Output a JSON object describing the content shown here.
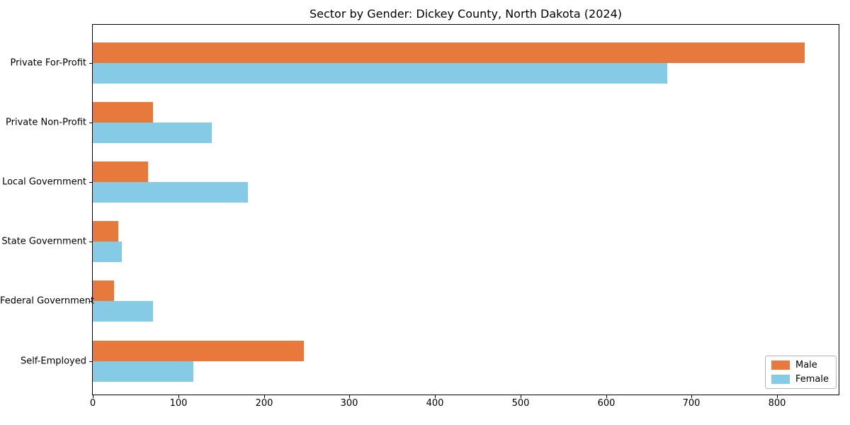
{
  "chart_data": {
    "type": "bar",
    "orientation": "horizontal",
    "title": "Sector by Gender: Dickey County, North Dakota (2024)",
    "categories": [
      "Private For-Profit",
      "Private Non-Profit",
      "Local Government",
      "State Government",
      "Federal Government",
      "Self-Employed"
    ],
    "series": [
      {
        "name": "Male",
        "color": "#e8793d",
        "values": [
          832,
          70,
          65,
          30,
          25,
          247
        ]
      },
      {
        "name": "Female",
        "color": "#85cbe5",
        "values": [
          672,
          139,
          181,
          34,
          70,
          118
        ]
      }
    ],
    "xlabel": "",
    "ylabel": "",
    "xlim": [
      0,
      872
    ],
    "xticks": [
      0,
      100,
      200,
      300,
      400,
      500,
      600,
      700,
      800
    ],
    "grid": false,
    "legend": {
      "position": "lower right",
      "labels": [
        "Male",
        "Female"
      ]
    }
  },
  "colors": {
    "male": "#e8793d",
    "female": "#85cbe5",
    "spine": "#000000",
    "legend_border": "#b3b3b3",
    "background": "#ffffff"
  }
}
